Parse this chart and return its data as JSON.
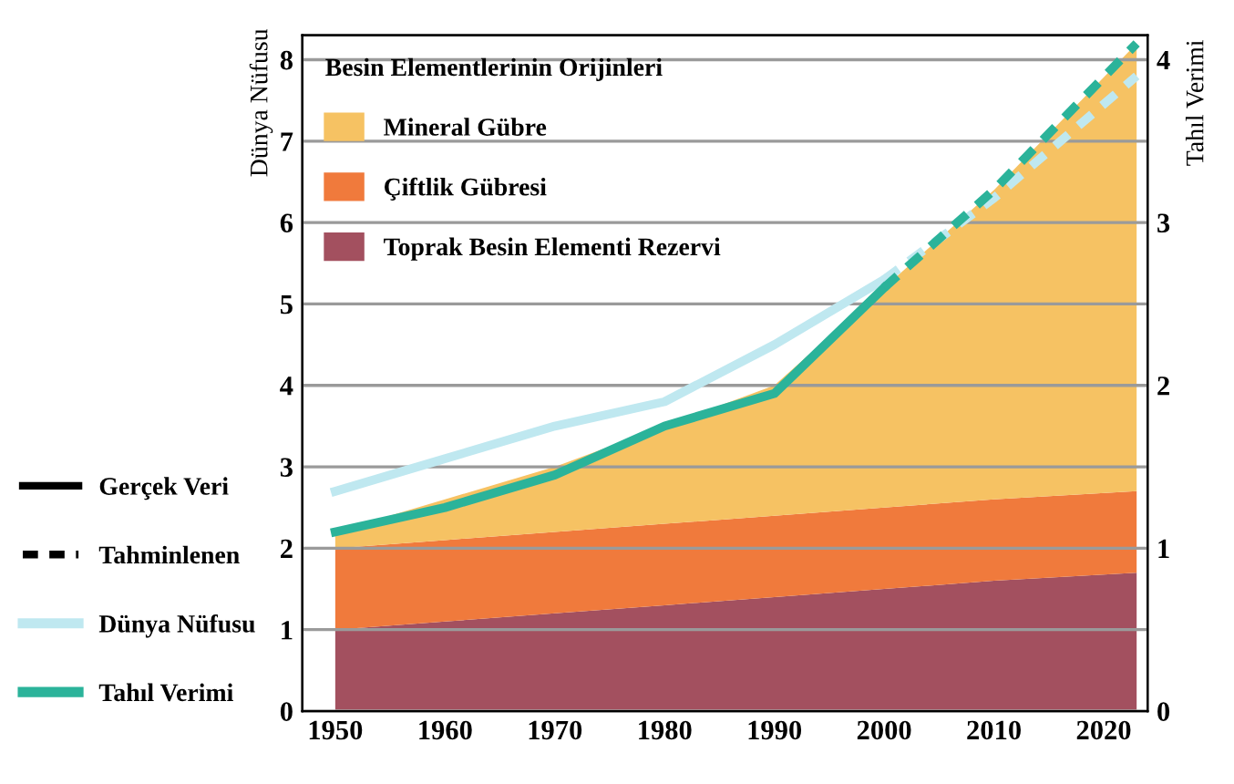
{
  "chart_data": {
    "type": "area",
    "stacked": true,
    "xlim": [
      1947,
      2024
    ],
    "xticks": [
      1950,
      1960,
      1970,
      1980,
      1990,
      2000,
      2010,
      2020
    ],
    "ylim": [
      0,
      8.3
    ],
    "yticks": [
      0,
      1,
      2,
      3,
      4,
      5,
      6,
      7,
      8
    ],
    "y2lim": [
      0,
      4.15
    ],
    "y2ticks": [
      0,
      1,
      2,
      3,
      4
    ],
    "ylabel": "Dünya Nüfusu",
    "y2label": "Tahıl Verimi",
    "legend_title": "Besin Elementlerinin Orijinleri",
    "legend": "left",
    "grid": "y",
    "annotations": [
      "Gerçek Veri",
      "Tahminlenen"
    ],
    "series": [
      {
        "name": "Toprak Besin Elementi Rezervi",
        "color": "#a3505f",
        "x": [
          1950,
          1960,
          1970,
          1980,
          1990,
          2000,
          2010,
          2023
        ],
        "values": [
          1.0,
          1.1,
          1.2,
          1.3,
          1.4,
          1.5,
          1.6,
          1.7
        ]
      },
      {
        "name": "Çiftlik Gübresi",
        "color": "#f07a3c",
        "x": [
          1950,
          1960,
          1970,
          1980,
          1990,
          2000,
          2010,
          2023
        ],
        "values": [
          1.0,
          1.0,
          1.0,
          1.0,
          1.0,
          1.0,
          1.0,
          1.0
        ]
      },
      {
        "name": "Mineral Gübre",
        "color": "#f6c263",
        "x": [
          1950,
          1960,
          1970,
          1980,
          1990,
          2000,
          2010,
          2023
        ],
        "values": [
          0.2,
          0.5,
          0.8,
          1.2,
          1.6,
          2.7,
          3.8,
          5.5
        ]
      },
      {
        "name": "Dünya Nüfusu",
        "type": "line",
        "line_style": "solid",
        "color": "#bfe8f0",
        "x": [
          1950,
          1960,
          1970,
          1980,
          1990,
          2000
        ],
        "values": [
          2.7,
          3.1,
          3.5,
          3.8,
          4.5,
          5.3
        ]
      },
      {
        "type": "line",
        "line_style": "dashed",
        "color": "#bfe8f0",
        "x": [
          2000,
          2010,
          2023
        ],
        "values": [
          5.3,
          6.3,
          7.8
        ]
      },
      {
        "name": "Tahıl Verimi",
        "type": "line",
        "axis": "y2",
        "line_style": "solid",
        "color": "#2bb39a",
        "x": [
          1950,
          1960,
          1970,
          1980,
          1990,
          2000
        ],
        "values": [
          1.1,
          1.25,
          1.45,
          1.75,
          1.95,
          2.6
        ]
      },
      {
        "type": "line",
        "axis": "y2",
        "line_style": "dashed",
        "color": "#2bb39a",
        "x": [
          2000,
          2010,
          2023
        ],
        "values": [
          2.6,
          3.2,
          4.1
        ]
      }
    ]
  }
}
